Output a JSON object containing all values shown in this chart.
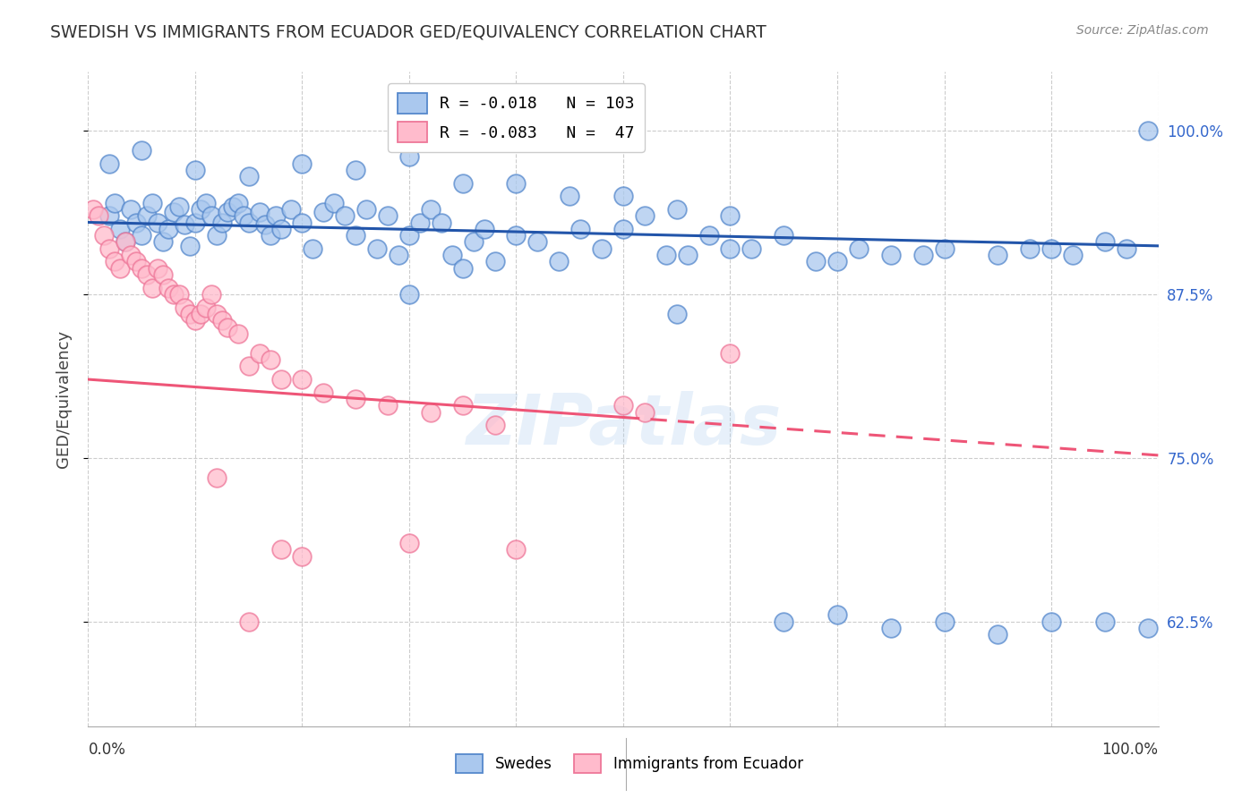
{
  "title": "SWEDISH VS IMMIGRANTS FROM ECUADOR GED/EQUIVALENCY CORRELATION CHART",
  "source": "Source: ZipAtlas.com",
  "ylabel": "GED/Equivalency",
  "ytick_values": [
    0.625,
    0.75,
    0.875,
    1.0
  ],
  "xmin": 0.0,
  "xmax": 1.0,
  "ymin": 0.545,
  "ymax": 1.045,
  "legend_label1": "R = -0.018   N = 103",
  "legend_label2": "R = -0.083   N =  47",
  "blue_face_color": "#AAC8EE",
  "blue_edge_color": "#5588CC",
  "pink_face_color": "#FFBBCC",
  "pink_edge_color": "#EE7799",
  "blue_line_color": "#2255AA",
  "pink_line_color": "#EE5577",
  "watermark": "ZIPatlas",
  "blue_trendline_y_start": 0.93,
  "blue_trendline_y_end": 0.912,
  "pink_trendline_y_start": 0.81,
  "pink_trendline_y_end": 0.752,
  "blue_scatter_x": [
    0.02,
    0.025,
    0.03,
    0.035,
    0.04,
    0.045,
    0.05,
    0.055,
    0.06,
    0.065,
    0.07,
    0.075,
    0.08,
    0.085,
    0.09,
    0.095,
    0.1,
    0.105,
    0.11,
    0.115,
    0.12,
    0.125,
    0.13,
    0.135,
    0.14,
    0.145,
    0.15,
    0.16,
    0.165,
    0.17,
    0.175,
    0.18,
    0.19,
    0.2,
    0.21,
    0.22,
    0.23,
    0.24,
    0.25,
    0.26,
    0.27,
    0.28,
    0.29,
    0.3,
    0.31,
    0.32,
    0.33,
    0.34,
    0.35,
    0.36,
    0.37,
    0.38,
    0.4,
    0.42,
    0.44,
    0.46,
    0.48,
    0.5,
    0.52,
    0.54,
    0.56,
    0.58,
    0.6,
    0.62,
    0.65,
    0.68,
    0.7,
    0.72,
    0.75,
    0.78,
    0.8,
    0.85,
    0.88,
    0.9,
    0.92,
    0.95,
    0.97,
    0.99,
    0.02,
    0.05,
    0.1,
    0.15,
    0.2,
    0.25,
    0.3,
    0.35,
    0.4,
    0.45,
    0.5,
    0.55,
    0.6,
    0.65,
    0.7,
    0.75,
    0.8,
    0.85,
    0.9,
    0.95,
    0.99,
    0.3,
    0.55
  ],
  "blue_scatter_y": [
    0.935,
    0.945,
    0.925,
    0.915,
    0.94,
    0.93,
    0.92,
    0.935,
    0.945,
    0.93,
    0.915,
    0.925,
    0.938,
    0.942,
    0.928,
    0.912,
    0.93,
    0.94,
    0.945,
    0.935,
    0.92,
    0.93,
    0.938,
    0.942,
    0.945,
    0.935,
    0.93,
    0.938,
    0.928,
    0.92,
    0.935,
    0.925,
    0.94,
    0.93,
    0.91,
    0.938,
    0.945,
    0.935,
    0.92,
    0.94,
    0.91,
    0.935,
    0.905,
    0.92,
    0.93,
    0.94,
    0.93,
    0.905,
    0.895,
    0.915,
    0.925,
    0.9,
    0.92,
    0.915,
    0.9,
    0.925,
    0.91,
    0.925,
    0.935,
    0.905,
    0.905,
    0.92,
    0.91,
    0.91,
    0.92,
    0.9,
    0.9,
    0.91,
    0.905,
    0.905,
    0.91,
    0.905,
    0.91,
    0.91,
    0.905,
    0.915,
    0.91,
    1.0,
    0.975,
    0.985,
    0.97,
    0.965,
    0.975,
    0.97,
    0.98,
    0.96,
    0.96,
    0.95,
    0.95,
    0.94,
    0.935,
    0.625,
    0.63,
    0.62,
    0.625,
    0.615,
    0.625,
    0.625,
    0.62,
    0.875,
    0.86
  ],
  "pink_scatter_x": [
    0.005,
    0.01,
    0.015,
    0.02,
    0.025,
    0.03,
    0.035,
    0.04,
    0.045,
    0.05,
    0.055,
    0.06,
    0.065,
    0.07,
    0.075,
    0.08,
    0.085,
    0.09,
    0.095,
    0.1,
    0.105,
    0.11,
    0.115,
    0.12,
    0.125,
    0.13,
    0.14,
    0.15,
    0.16,
    0.17,
    0.18,
    0.2,
    0.22,
    0.25,
    0.28,
    0.32,
    0.35,
    0.38,
    0.5,
    0.52,
    0.6,
    0.12,
    0.18,
    0.3,
    0.4,
    0.15,
    0.2
  ],
  "pink_scatter_y": [
    0.94,
    0.935,
    0.92,
    0.91,
    0.9,
    0.895,
    0.915,
    0.905,
    0.9,
    0.895,
    0.89,
    0.88,
    0.895,
    0.89,
    0.88,
    0.875,
    0.875,
    0.865,
    0.86,
    0.855,
    0.86,
    0.865,
    0.875,
    0.86,
    0.855,
    0.85,
    0.845,
    0.82,
    0.83,
    0.825,
    0.81,
    0.81,
    0.8,
    0.795,
    0.79,
    0.785,
    0.79,
    0.775,
    0.79,
    0.785,
    0.83,
    0.735,
    0.68,
    0.685,
    0.68,
    0.625,
    0.675
  ]
}
